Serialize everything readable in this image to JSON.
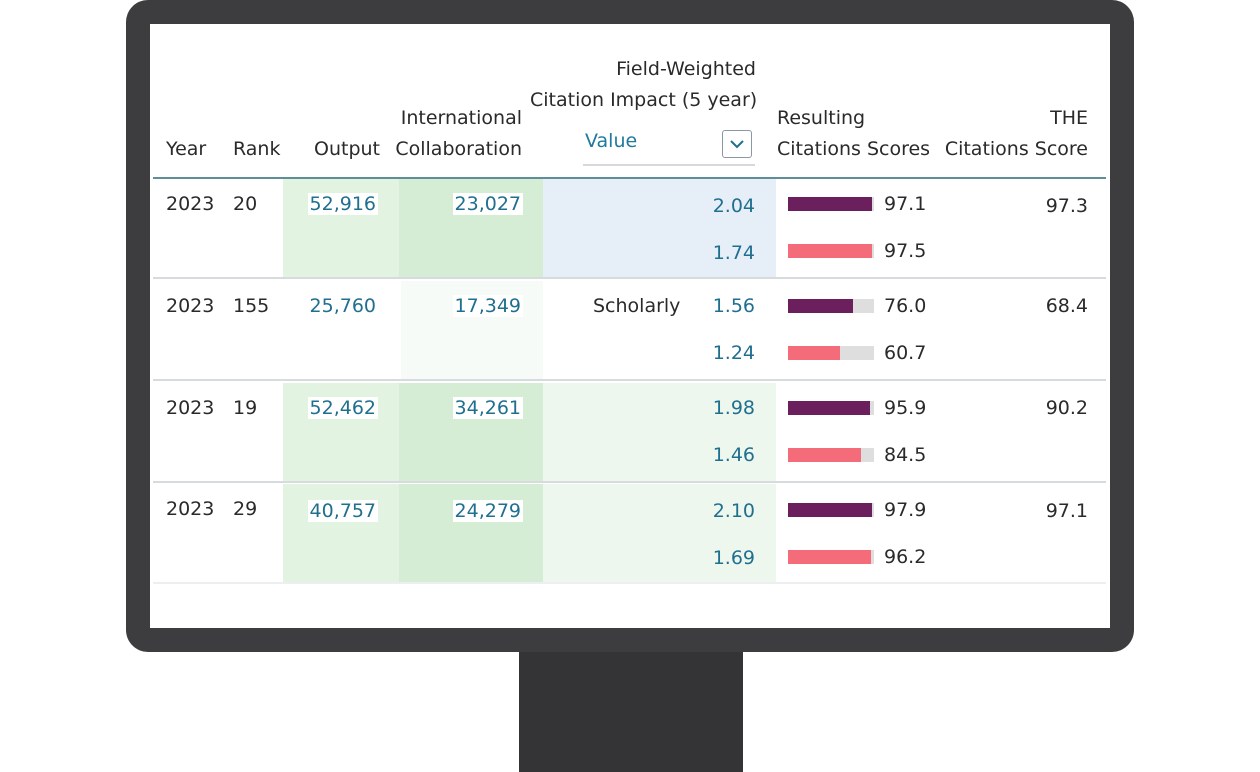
{
  "table": {
    "headers": {
      "year": "Year",
      "rank": "Rank",
      "output": "Output",
      "intl_collab_line1": "International",
      "intl_collab_line2": "Collaboration",
      "fwci_line1": "Field-Weighted",
      "fwci_line2": "Citation Impact (5 year)",
      "resulting_line1": "Resulting",
      "resulting_line2": "Citations Scores",
      "the_line1": "THE",
      "the_line2": "Citations Score"
    },
    "fwci_select": {
      "value": "Value"
    },
    "rows": [
      {
        "year": "2023",
        "rank": "20",
        "output": "52,916",
        "collab": "23,027",
        "label": "",
        "fwci": [
          "2.04",
          "1.74"
        ],
        "scores": [
          "97.1",
          "97.5"
        ],
        "score_fractions": [
          0.971,
          0.975
        ],
        "the": "97.3"
      },
      {
        "year": "2023",
        "rank": "155",
        "output": "25,760",
        "collab": "17,349",
        "label": "Scholarly",
        "fwci": [
          "1.56",
          "1.24"
        ],
        "scores": [
          "76.0",
          "60.7"
        ],
        "score_fractions": [
          0.76,
          0.607
        ],
        "the": "68.4"
      },
      {
        "year": "2023",
        "rank": "19",
        "output": "52,462",
        "collab": "34,261",
        "label": "",
        "fwci": [
          "1.98",
          "1.46"
        ],
        "scores": [
          "95.9",
          "84.5"
        ],
        "score_fractions": [
          0.959,
          0.845
        ],
        "the": "90.2"
      },
      {
        "year": "2023",
        "rank": "29",
        "output": "40,757",
        "collab": "24,279",
        "label": "",
        "fwci": [
          "2.10",
          "1.69"
        ],
        "scores": [
          "97.9",
          "96.2"
        ],
        "score_fractions": [
          0.979,
          0.962
        ],
        "the": "97.1"
      }
    ]
  },
  "colors": {
    "bar_primary": "#6b1f5c",
    "bar_secondary": "#f46b7a",
    "bar_track": "#dedede",
    "link": "#1f6f8f",
    "band_output": "#e2f3e2",
    "band_collab": "#d5ecd5",
    "band_fwci_highlight": "#e6eef8",
    "band_fwci": "#eef7ee"
  }
}
